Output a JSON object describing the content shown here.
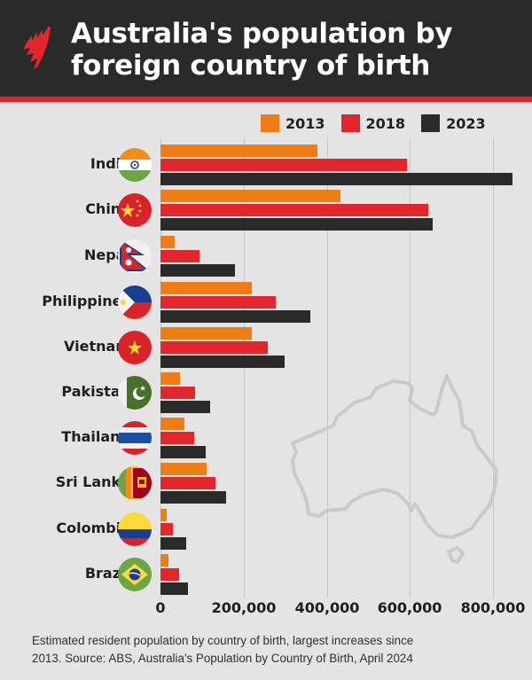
{
  "header": {
    "title_line1": "Australia's population by",
    "title_line2": "foreign country of birth",
    "logo": "sbs-logo-icon",
    "colors": {
      "background": "#2b2a2b",
      "stripe": "#e3262b",
      "text": "#ffffff"
    }
  },
  "legend": [
    {
      "label": "2013",
      "color": "#f07c16"
    },
    {
      "label": "2018",
      "color": "#e3262b"
    },
    {
      "label": "2023",
      "color": "#2b2a2b"
    }
  ],
  "axis": {
    "ticks": [
      {
        "value": 0,
        "label": "0"
      },
      {
        "value": 200000,
        "label": "200,000"
      },
      {
        "value": 400000,
        "label": "400,000"
      },
      {
        "value": 600000,
        "label": "600,000"
      },
      {
        "value": 800000,
        "label": "800,000"
      }
    ]
  },
  "footnote": {
    "line1": "Estimated resident population by country of birth, largest increases since",
    "line2": "2013.  Source: ABS, Australia's Population by Country of Birth, April 2024"
  },
  "background_icon": "australia-map-outline-icon",
  "chart_data": {
    "type": "bar",
    "orientation": "horizontal",
    "title": "Australia's population by foreign country of birth",
    "subtitle": "Estimated resident population by country of birth, largest increases since 2013. Source: ABS, Australia's Population by Country of Birth, April 2024",
    "xlabel": "",
    "ylabel": "",
    "xlim": [
      0,
      850000
    ],
    "grid": true,
    "legend_position": "top-right",
    "categories": [
      "India",
      "China",
      "Nepal",
      "Philippines",
      "Vietnam",
      "Pakistan",
      "Thailand",
      "Sri Lanka",
      "Colombia",
      "Brazil"
    ],
    "series": [
      {
        "name": "2013",
        "color": "#f07c16",
        "values": [
          377000,
          433000,
          34000,
          220000,
          220000,
          47000,
          58000,
          111000,
          15000,
          19000
        ]
      },
      {
        "name": "2018",
        "color": "#e3262b",
        "values": [
          592000,
          644000,
          94000,
          277000,
          258000,
          83000,
          81000,
          132000,
          30000,
          45000
        ]
      },
      {
        "name": "2023",
        "color": "#2b2a2b",
        "values": [
          846000,
          655000,
          179000,
          360000,
          299000,
          119000,
          109000,
          158000,
          62000,
          66000
        ]
      }
    ],
    "tick_labels": [
      "0",
      "200,000",
      "400,000",
      "600,000",
      "800,000"
    ]
  }
}
